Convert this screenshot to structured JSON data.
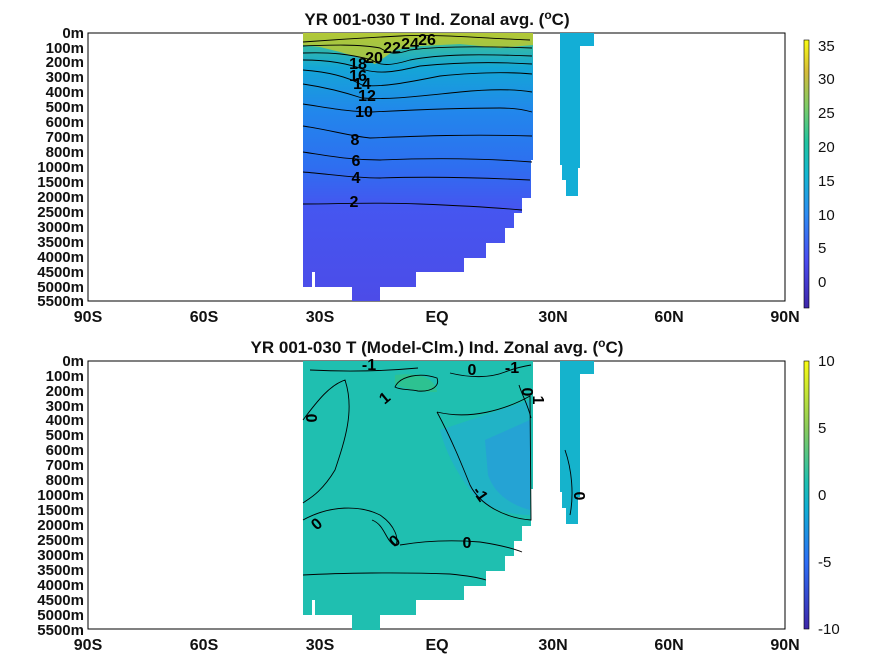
{
  "chart_data": [
    {
      "type": "heatmap",
      "title_main": "YR 001-030 T Ind. Zonal avg. (",
      "title_sup": "o",
      "title_end": "C)",
      "x_ticks": [
        "90S",
        "60S",
        "30S",
        "EQ",
        "30N",
        "60N",
        "90N"
      ],
      "x_values": [
        -90,
        -60,
        -30,
        0,
        30,
        60,
        90
      ],
      "y_ticks": [
        "0m",
        "100m",
        "200m",
        "300m",
        "400m",
        "500m",
        "600m",
        "700m",
        "800m",
        "1000m",
        "1500m",
        "2000m",
        "2500m",
        "3000m",
        "3500m",
        "4000m",
        "4500m",
        "5000m",
        "5500m"
      ],
      "colorbar": {
        "ticks": [
          "35",
          "30",
          "25",
          "20",
          "15",
          "10",
          "5",
          "0"
        ],
        "tick_values": [
          35,
          30,
          25,
          20,
          15,
          10,
          5,
          0
        ],
        "range": [
          -3.5,
          36
        ]
      },
      "contour_labels": [
        "26",
        "24",
        "22",
        "20",
        "18",
        "16",
        "14",
        "12",
        "10",
        "8",
        "6",
        "4",
        "2"
      ],
      "grid": false
    },
    {
      "type": "heatmap",
      "title_main": "YR 001-030 T (Model-Clm.) Ind. Zonal avg. (",
      "title_sup": "o",
      "title_end": "C)",
      "x_ticks": [
        "90S",
        "60S",
        "30S",
        "EQ",
        "30N",
        "60N",
        "90N"
      ],
      "x_values": [
        -90,
        -60,
        -30,
        0,
        30,
        60,
        90
      ],
      "y_ticks": [
        "0m",
        "100m",
        "200m",
        "300m",
        "400m",
        "500m",
        "600m",
        "700m",
        "800m",
        "1000m",
        "1500m",
        "2000m",
        "2500m",
        "3000m",
        "3500m",
        "4000m",
        "4500m",
        "5000m",
        "5500m"
      ],
      "colorbar": {
        "ticks": [
          "10",
          "5",
          "0",
          "-5",
          "-10"
        ],
        "tick_values": [
          10,
          5,
          0,
          -5,
          -10
        ],
        "range": [
          -10,
          10
        ]
      },
      "contour_labels": [
        "-1",
        "0",
        "-1",
        "0",
        "1",
        "0",
        "1",
        "0",
        "0",
        "-1",
        "0",
        "0",
        "0",
        "0"
      ],
      "grid": false
    }
  ]
}
